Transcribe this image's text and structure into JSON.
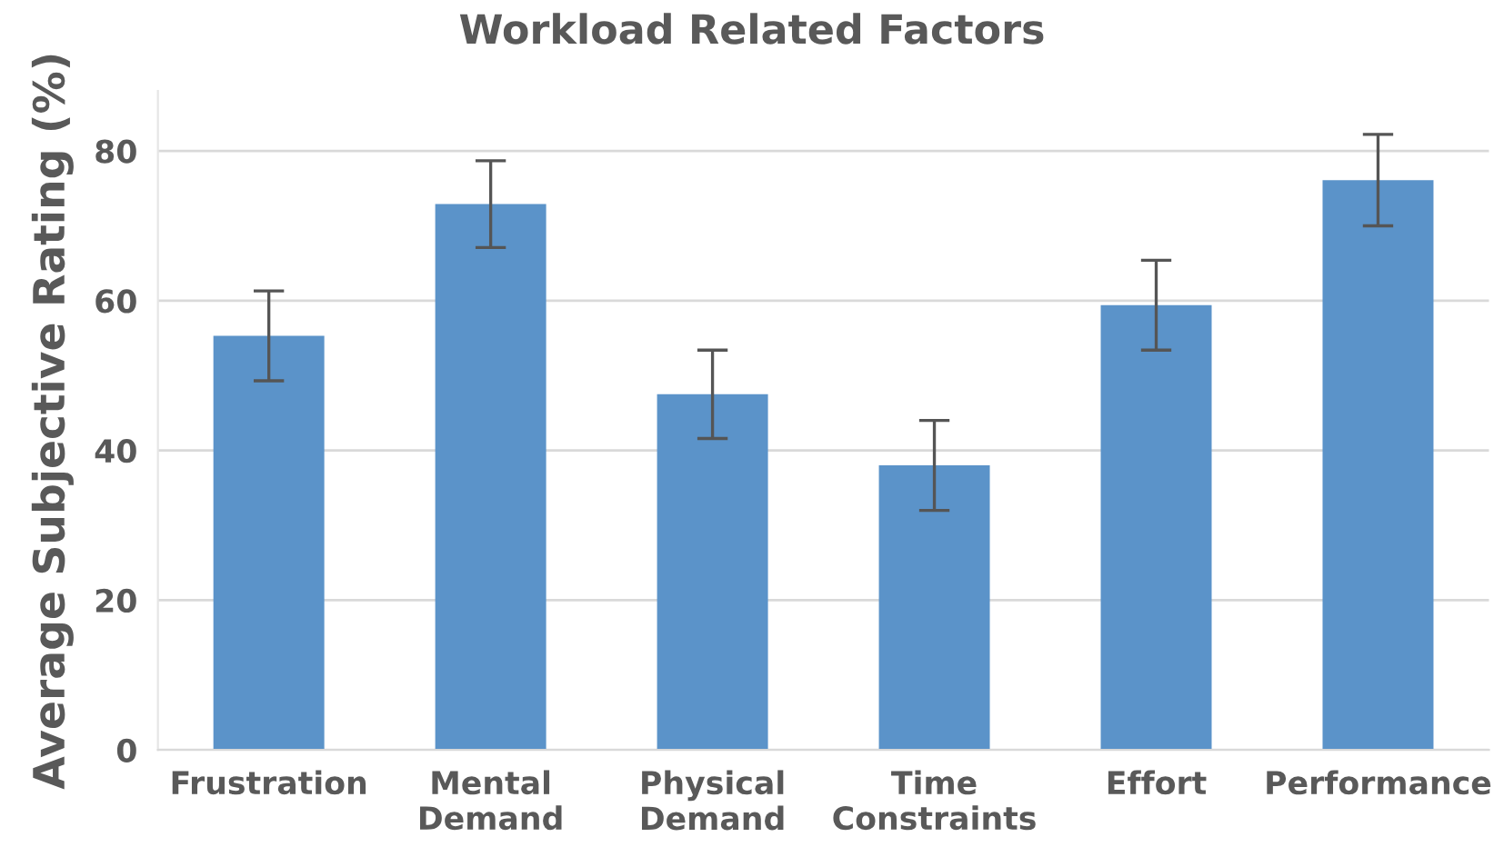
{
  "chart_data": {
    "type": "bar",
    "title": "Workload Related Factors",
    "ylabel": "Average Subjective Rating (%)",
    "categories": [
      "Frustration",
      "Mental\nDemand",
      "Physical\nDemand",
      "Time\nConstraints",
      "Effort",
      "Performance"
    ],
    "values": [
      55.3,
      72.9,
      47.5,
      38.0,
      59.4,
      76.1
    ],
    "errors": [
      6.0,
      5.8,
      5.9,
      6.0,
      6.0,
      6.1
    ],
    "color": "#5b93c9",
    "ylim": [
      0,
      88
    ],
    "yticks": [
      0,
      20,
      40,
      60,
      80
    ],
    "grid": "y"
  }
}
